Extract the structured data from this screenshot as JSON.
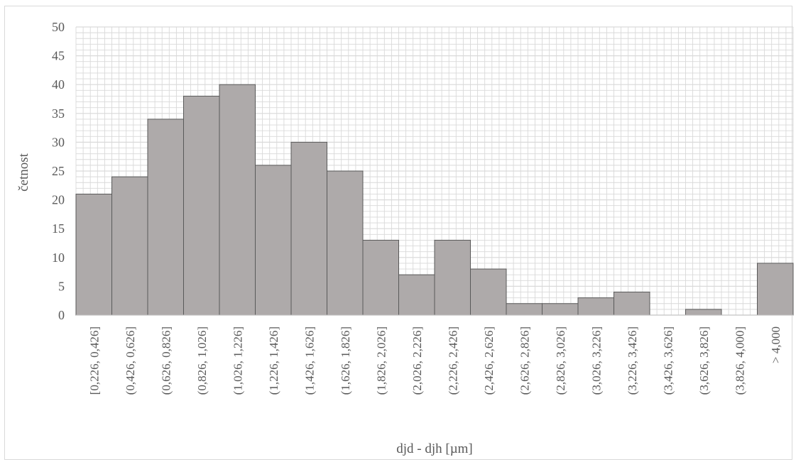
{
  "chart_data": {
    "type": "bar",
    "title": "",
    "xlabel": "djd - djh [µm]",
    "ylabel": "četnost",
    "ylim": [
      0,
      50
    ],
    "y_ticks": [
      0,
      5,
      10,
      15,
      20,
      25,
      30,
      35,
      40,
      45,
      50
    ],
    "minor_grid_step": 1,
    "grid": true,
    "bar_color": "#aeaaaa",
    "bar_edge_color": "#595959",
    "grid_color": "#d9d9d9",
    "categories": [
      "[0,226, 0,426]",
      "(0,426, 0,626]",
      "(0,626, 0,826]",
      "(0,826, 1,026]",
      "(1,026, 1,226]",
      "(1,226, 1,426]",
      "(1,426, 1,626]",
      "(1,626, 1,826]",
      "(1,826, 2,026]",
      "(2,026, 2,226]",
      "(2,226, 2,426]",
      "(2,426, 2,626]",
      "(2,626, 2,826]",
      "(2,826, 3,026]",
      "(3,026, 3,226]",
      "(3,226, 3,426]",
      "(3,426, 3,626]",
      "(3,626, 3,826]",
      "(3,826, 4,000]",
      "> 4,000"
    ],
    "values": [
      21,
      24,
      34,
      38,
      40,
      26,
      30,
      25,
      13,
      7,
      13,
      8,
      2,
      2,
      3,
      4,
      0,
      1,
      0,
      9
    ]
  }
}
